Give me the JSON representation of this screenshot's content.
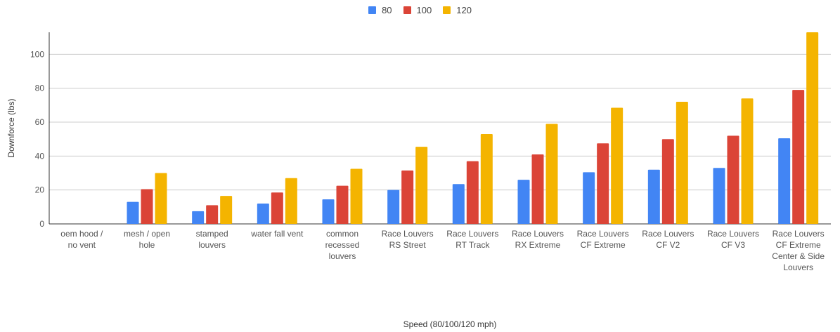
{
  "chart_data": {
    "type": "bar",
    "title": "",
    "xlabel": "Speed (80/100/120 mph)",
    "ylabel": "Downforce (lbs)",
    "ylim": [
      0,
      113
    ],
    "yticks": [
      0,
      20,
      40,
      60,
      80,
      100
    ],
    "grid": true,
    "legend_position": "top-center",
    "categories": [
      [
        "oem hood /",
        "no vent"
      ],
      [
        "mesh / open",
        "hole"
      ],
      [
        "stamped",
        "louvers"
      ],
      [
        "water fall vent"
      ],
      [
        "common",
        "recessed",
        "louvers"
      ],
      [
        "Race Louvers",
        "RS Street"
      ],
      [
        "Race Louvers",
        "RT Track"
      ],
      [
        "Race Louvers",
        "RX Extreme"
      ],
      [
        "Race Louvers",
        "CF Extreme"
      ],
      [
        "Race Louvers",
        "CF V2"
      ],
      [
        "Race Louvers",
        "CF V3"
      ],
      [
        "Race Louvers",
        "CF Extreme",
        "Center & Side",
        "Louvers"
      ]
    ],
    "series": [
      {
        "name": "80",
        "color": "#4285f4",
        "values": [
          0,
          13,
          7.5,
          12,
          14.5,
          20,
          23.5,
          26,
          30.5,
          32,
          33,
          50.5
        ]
      },
      {
        "name": "100",
        "color": "#db4437",
        "values": [
          0,
          20.5,
          11,
          18.5,
          22.5,
          31.5,
          37,
          41,
          47.5,
          50,
          52,
          79
        ]
      },
      {
        "name": "120",
        "color": "#f4b400",
        "values": [
          0,
          30,
          16.5,
          27,
          32.5,
          45.5,
          53,
          59,
          68.5,
          72,
          74,
          113
        ]
      }
    ]
  }
}
